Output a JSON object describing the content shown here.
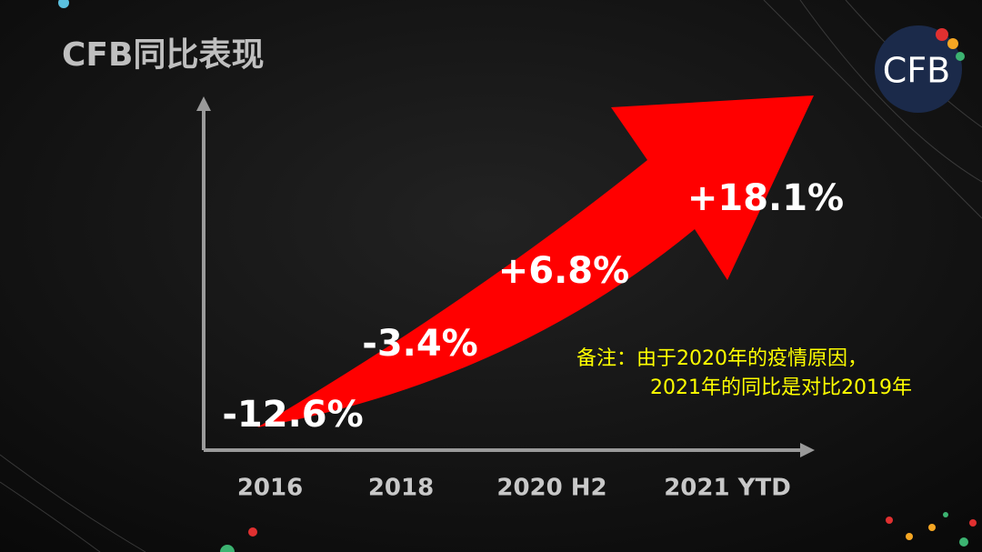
{
  "title": "CFB同比表现",
  "logo": "CFB",
  "chart_data": {
    "type": "arrow",
    "categories": [
      "2016",
      "2018",
      "2020 H2",
      "2021 YTD"
    ],
    "values": [
      -12.6,
      -3.4,
      6.8,
      18.1
    ],
    "value_labels": [
      "-12.6%",
      "-3.4%",
      "+6.8%",
      "+18.1%"
    ],
    "color": "#ff0000",
    "annotation": [
      "备注：由于2020年的疫情原因，",
      "2021年的同比是对比2019年"
    ]
  }
}
